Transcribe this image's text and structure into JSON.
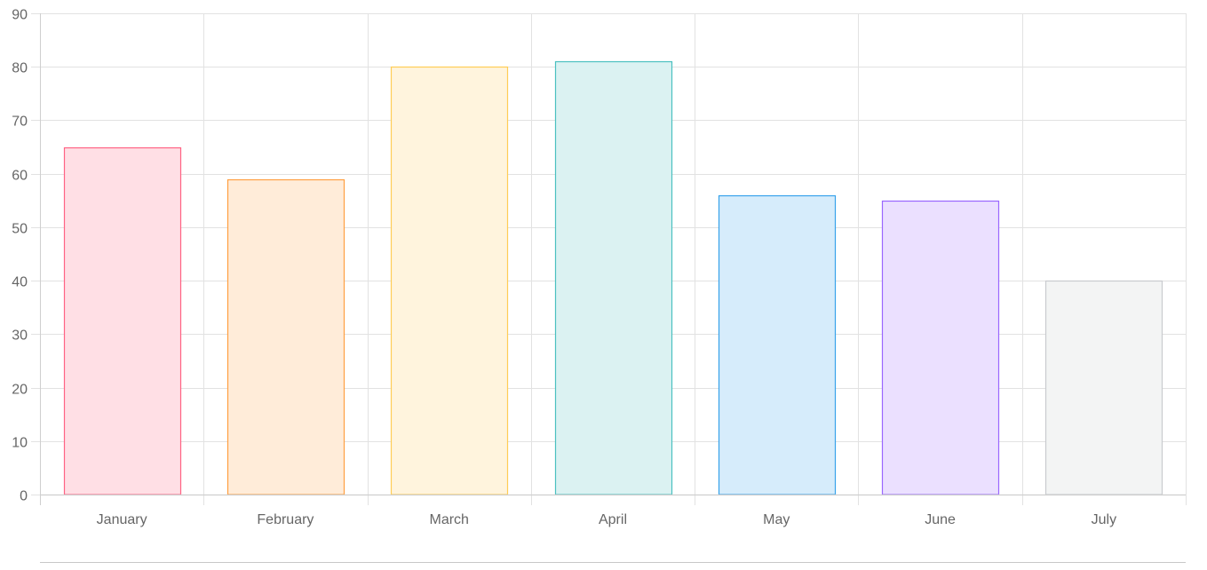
{
  "chart_data": {
    "type": "bar",
    "categories": [
      "January",
      "February",
      "March",
      "April",
      "May",
      "June",
      "July"
    ],
    "values": [
      65,
      59,
      80,
      81,
      56,
      55,
      40
    ],
    "ylim": [
      0,
      90
    ],
    "yticks": [
      0,
      10,
      20,
      30,
      40,
      50,
      60,
      70,
      80,
      90
    ],
    "grid": true,
    "legend": "none",
    "bar_colors": [
      {
        "fill": "#ffdfe5",
        "stroke": "#ff6384"
      },
      {
        "fill": "#ffecd9",
        "stroke": "#ff9f40"
      },
      {
        "fill": "#fff4dd",
        "stroke": "#ffcd56"
      },
      {
        "fill": "#dbf2f2",
        "stroke": "#4bc0c0"
      },
      {
        "fill": "#d6ecfb",
        "stroke": "#36a2eb"
      },
      {
        "fill": "#ebe0ff",
        "stroke": "#9966ff"
      },
      {
        "fill": "#f3f4f4",
        "stroke": "#c9cbcf"
      }
    ],
    "grid_color": "#e2e2e2",
    "axis_color": "#cfcfcf",
    "tick_label_color": "#666666"
  }
}
